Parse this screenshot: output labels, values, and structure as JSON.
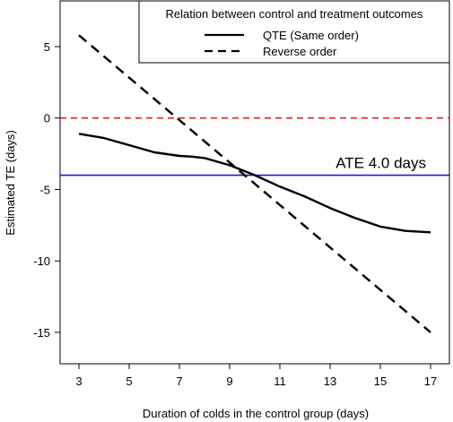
{
  "chart_data": {
    "type": "line",
    "xlabel": "Duration of colds in the control group (days)",
    "ylabel": "Estimated TE (days)",
    "xlim": [
      2.25,
      17.75
    ],
    "ylim": [
      -17.2,
      8.2
    ],
    "xticks": [
      3,
      5,
      7,
      9,
      11,
      13,
      15,
      17
    ],
    "yticks": [
      -15,
      -10,
      -5,
      0,
      5
    ],
    "legend": {
      "title": "Relation between control and treatment outcomes",
      "placement": "top-right"
    },
    "series": [
      {
        "name": "QTE (Same order)",
        "style": "solid",
        "color": "#000000",
        "x": [
          3,
          4,
          5,
          6,
          7,
          7.5,
          8,
          9,
          10,
          11,
          12,
          13,
          14,
          15,
          16,
          17
        ],
        "y": [
          -1.1,
          -1.4,
          -1.9,
          -2.4,
          -2.65,
          -2.7,
          -2.8,
          -3.3,
          -4.0,
          -4.8,
          -5.5,
          -6.3,
          -7.0,
          -7.6,
          -7.9,
          -8.0
        ]
      },
      {
        "name": "Reverse order",
        "style": "dashed",
        "color": "#000000",
        "x": [
          3,
          17
        ],
        "y": [
          5.8,
          -15.0
        ]
      }
    ],
    "reference_lines": [
      {
        "orientation": "horizontal",
        "y": 0,
        "style": "dashed",
        "color": "#e8141b"
      },
      {
        "orientation": "horizontal",
        "y": -4.0,
        "style": "solid",
        "color": "#1a1ad6",
        "label": "ATE 4.0 days"
      }
    ]
  }
}
